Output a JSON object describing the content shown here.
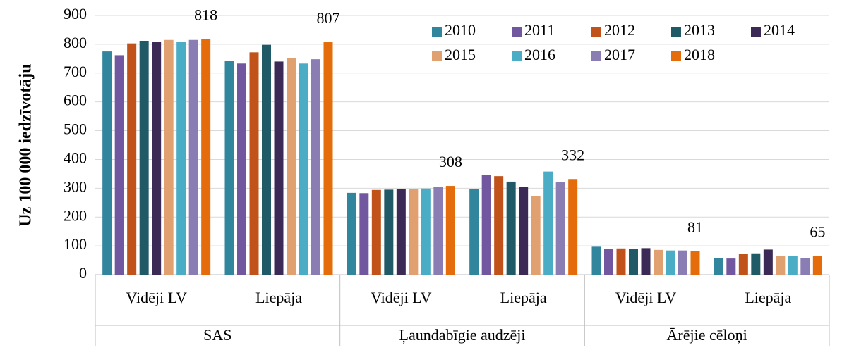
{
  "chart_data": {
    "type": "bar",
    "y_label": "Uz 100 000 iedzīvotāju",
    "categories": [
      "Vidēji LV",
      "Liepāja",
      "Vidēji LV",
      "Liepāja",
      "Vidēji LV",
      "Liepāja"
    ],
    "groups": [
      "SAS",
      "Ļaundabīgie audzēji",
      "Ārējie cēloņi"
    ],
    "series": [
      {
        "name": "2010",
        "color": "#31859c",
        "values": [
          775,
          742,
          284,
          296,
          97,
          58
        ]
      },
      {
        "name": "2011",
        "color": "#7057a0",
        "values": [
          762,
          733,
          283,
          347,
          88,
          56
        ]
      },
      {
        "name": "2012",
        "color": "#c0521a",
        "values": [
          803,
          772,
          294,
          342,
          91,
          71
        ]
      },
      {
        "name": "2013",
        "color": "#1f5a66",
        "values": [
          812,
          798,
          295,
          323,
          88,
          74
        ]
      },
      {
        "name": "2014",
        "color": "#3b2a55",
        "values": [
          808,
          740,
          298,
          304,
          92,
          87
        ]
      },
      {
        "name": "2015",
        "color": "#e0a070",
        "values": [
          815,
          753,
          296,
          272,
          86,
          64
        ]
      },
      {
        "name": "2016",
        "color": "#4bacc6",
        "values": [
          808,
          733,
          299,
          358,
          84,
          65
        ]
      },
      {
        "name": "2017",
        "color": "#8a7db3",
        "values": [
          815,
          748,
          305,
          322,
          84,
          58
        ]
      },
      {
        "name": "2018",
        "color": "#e46c0a",
        "values": [
          818,
          807,
          308,
          332,
          81,
          65
        ],
        "show_labels": true
      }
    ],
    "ylim": [
      0,
      900
    ],
    "yticks": [
      0,
      100,
      200,
      300,
      400,
      500,
      600,
      700,
      800,
      900
    ],
    "grid": true,
    "legend": "top-right"
  }
}
